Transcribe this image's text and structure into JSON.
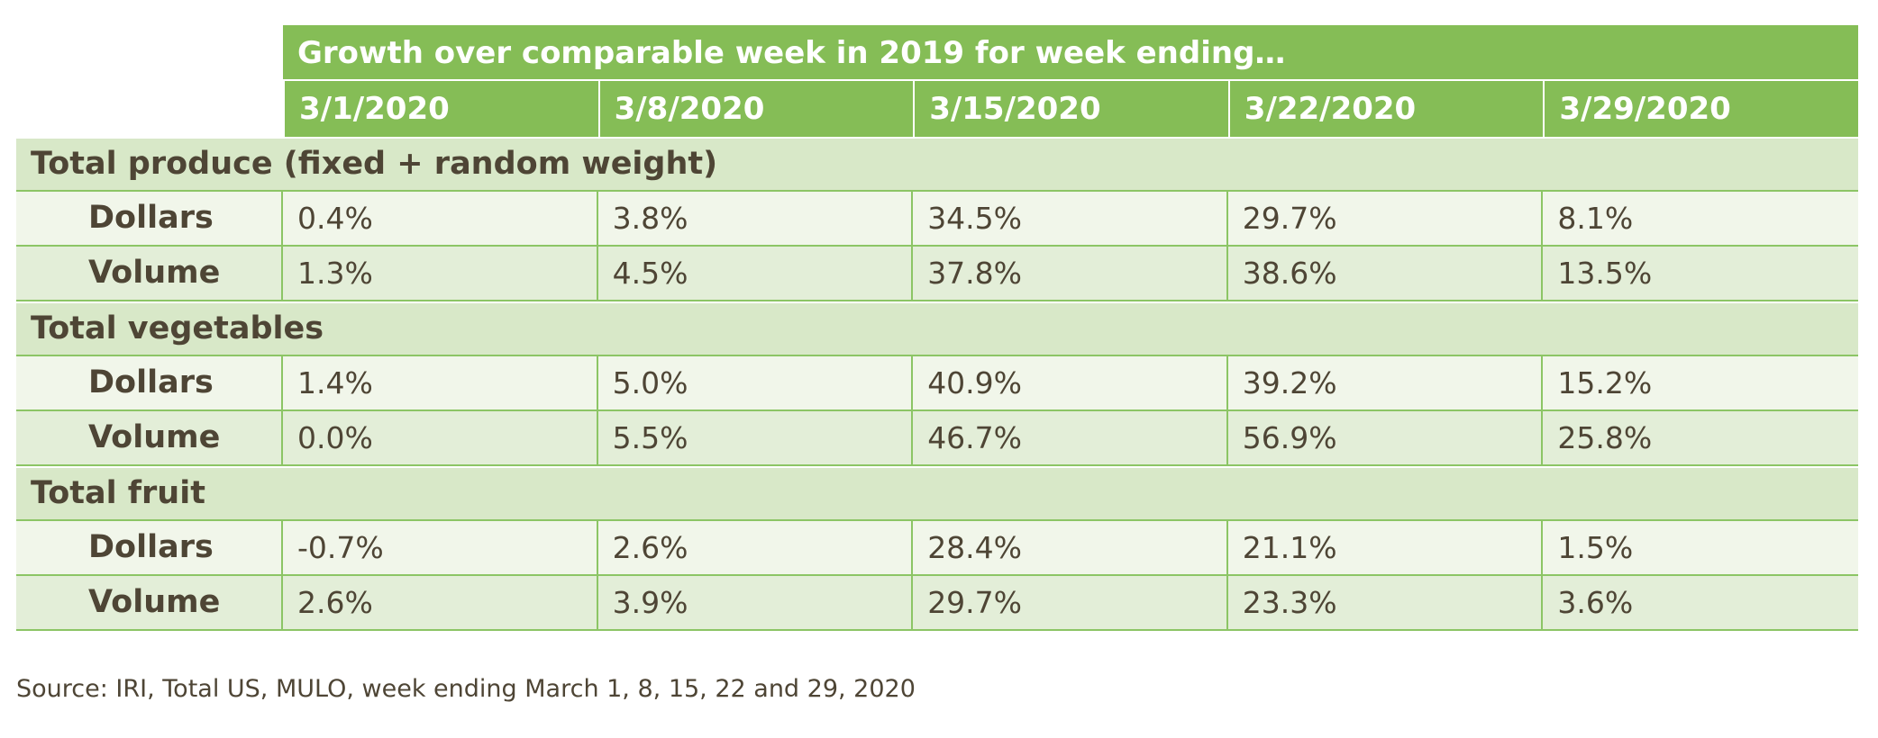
{
  "header": {
    "group_title": "Growth over comparable week in 2019 for week ending…",
    "dates": [
      "3/1/2020",
      "3/8/2020",
      "3/15/2020",
      "3/22/2020",
      "3/29/2020"
    ]
  },
  "sections": [
    {
      "title": "Total produce (fixed + random weight)",
      "rows": [
        {
          "label": "Dollars",
          "values": [
            "0.4%",
            "3.8%",
            "34.5%",
            "29.7%",
            "8.1%"
          ]
        },
        {
          "label": "Volume",
          "values": [
            "1.3%",
            "4.5%",
            "37.8%",
            "38.6%",
            "13.5%"
          ]
        }
      ]
    },
    {
      "title": "Total vegetables",
      "rows": [
        {
          "label": "Dollars",
          "values": [
            "1.4%",
            "5.0%",
            "40.9%",
            "39.2%",
            "15.2%"
          ]
        },
        {
          "label": "Volume",
          "values": [
            "0.0%",
            "5.5%",
            "46.7%",
            "56.9%",
            "25.8%"
          ]
        }
      ]
    },
    {
      "title": "Total fruit",
      "rows": [
        {
          "label": "Dollars",
          "values": [
            "-0.7%",
            "2.6%",
            "28.4%",
            "21.1%",
            "1.5%"
          ]
        },
        {
          "label": "Volume",
          "values": [
            "2.6%",
            "3.9%",
            "29.7%",
            "23.3%",
            "3.6%"
          ]
        }
      ]
    }
  ],
  "source": "Source: IRI, Total US, MULO, week ending March 1, 8, 15, 22 and 29, 2020",
  "colors": {
    "header_green": "#85bd56",
    "section_bg": "#d8e8c8",
    "row_light": "#f1f6ea",
    "row_mid": "#e3eed8",
    "border_green": "#8cc565",
    "text": "#4e4535"
  }
}
